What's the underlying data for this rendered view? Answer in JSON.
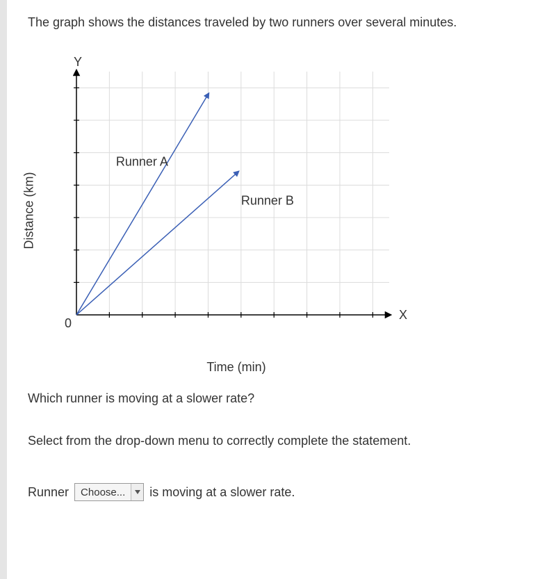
{
  "intro_text": "The graph shows the distances traveled by two runners over several minutes.",
  "question_text": "Which runner is moving at a slower rate?",
  "instruction_text": "Select from the drop-down menu to correctly complete the statement.",
  "answer": {
    "prefix": "Runner",
    "dropdown_placeholder": "Choose...",
    "suffix": "is moving at a slower rate."
  },
  "chart": {
    "type": "line",
    "y_axis_label": "Distance (km)",
    "x_axis_label": "Time (min)",
    "y_letter": "Y",
    "x_letter": "X",
    "origin_label": "0",
    "xlim": [
      0,
      9.5
    ],
    "ylim": [
      0,
      7.5
    ],
    "x_ticks": [
      1,
      2,
      3,
      4,
      5,
      6,
      7,
      8,
      9
    ],
    "y_ticks": [
      1,
      2,
      3,
      4,
      5,
      6,
      7
    ],
    "grid_color": "#dcdcdc",
    "axis_color": "#000000",
    "background_color": "#ffffff",
    "axis_fontsize": 18,
    "label_fontsize": 18,
    "line_width": 1.5,
    "series": [
      {
        "name": "Runner A",
        "label_text": "Runner A",
        "color": "#3a5fb5",
        "points": [
          [
            0,
            0
          ],
          [
            4.0,
            6.8
          ]
        ],
        "label_pos": [
          1.2,
          4.6
        ]
      },
      {
        "name": "Runner B",
        "label_text": "Runner B",
        "color": "#3a5fb5",
        "points": [
          [
            0,
            0
          ],
          [
            4.9,
            4.4
          ]
        ],
        "label_pos": [
          5.0,
          3.4
        ]
      }
    ]
  }
}
